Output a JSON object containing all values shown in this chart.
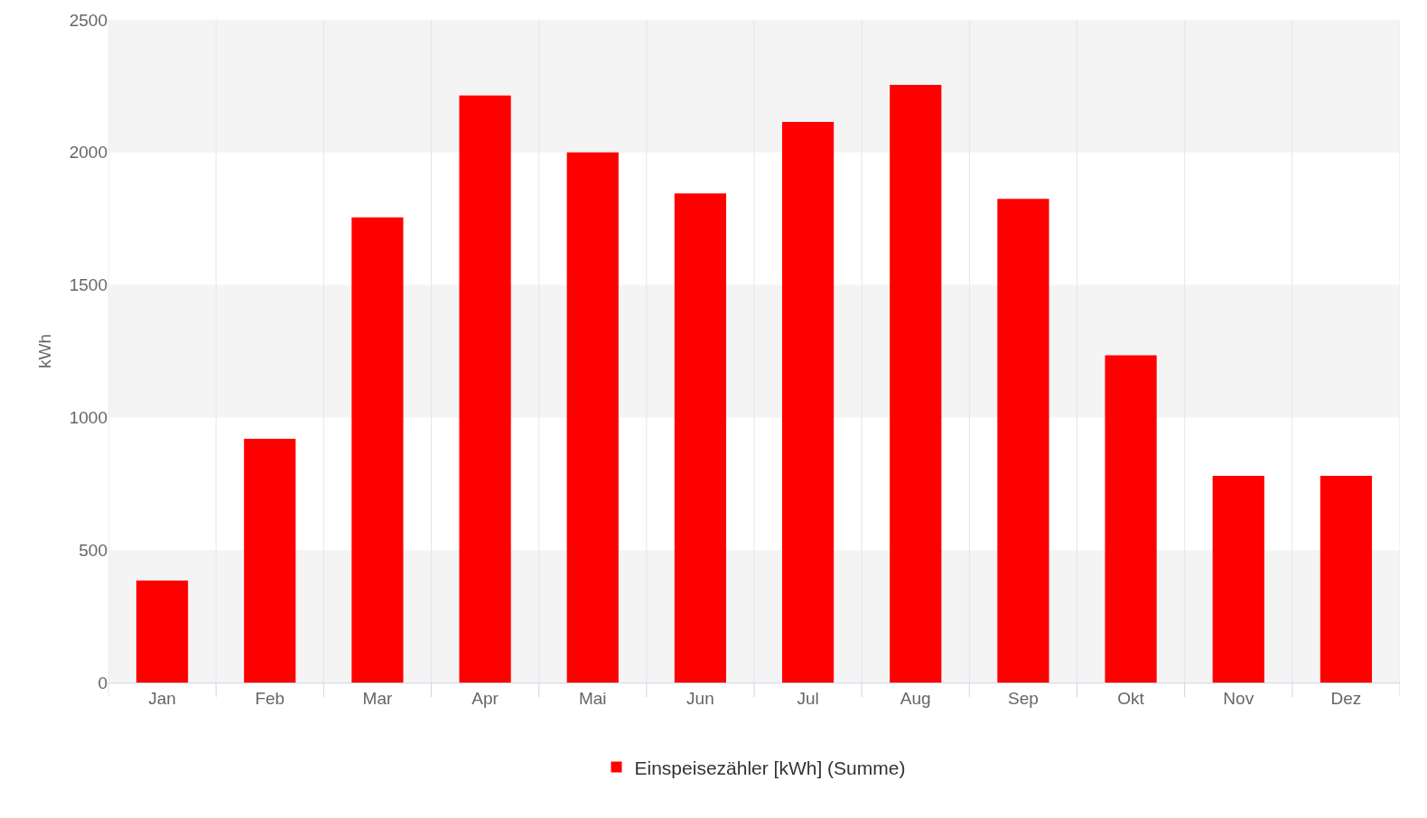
{
  "chart_data": {
    "type": "bar",
    "ylabel": "kWh",
    "categories": [
      "Jan",
      "Feb",
      "Mar",
      "Apr",
      "Mai",
      "Jun",
      "Jul",
      "Aug",
      "Sep",
      "Okt",
      "Nov",
      "Dez"
    ],
    "series": [
      {
        "name": "Einspeisezähler [kWh] (Summe)",
        "color": "#ff0000",
        "values": [
          385,
          920,
          1755,
          2215,
          2000,
          1845,
          2115,
          2255,
          1825,
          1235,
          780,
          780
        ]
      }
    ],
    "ylim": [
      0,
      2500
    ],
    "yticks": [
      0,
      500,
      1000,
      1500,
      2000,
      2500
    ],
    "bands": [
      {
        "axis": "y",
        "from": 0,
        "to": 500,
        "color": "#f4f4f4"
      },
      {
        "axis": "y",
        "from": 1000,
        "to": 1500,
        "color": "#f4f4f4"
      },
      {
        "axis": "y",
        "from": 2000,
        "to": 2500,
        "color": "#f4f4f4"
      }
    ],
    "grid": "x",
    "legend": "bottom"
  }
}
